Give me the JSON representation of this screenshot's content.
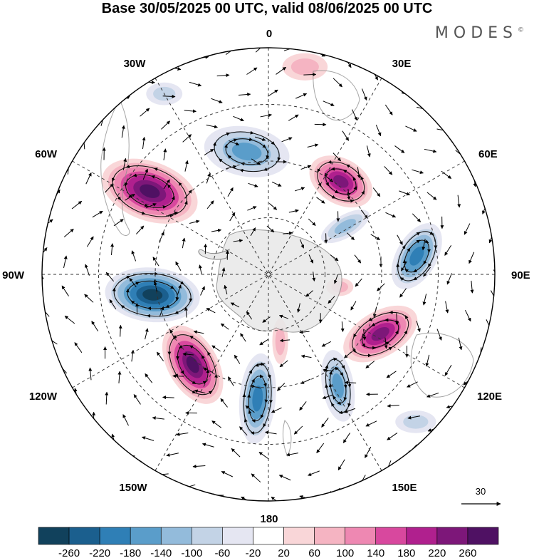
{
  "title": "Base 30/05/2025 00 UTC, valid 08/06/2025 00 UTC",
  "brand": {
    "text": "MODES",
    "mark": "©"
  },
  "longitude_labels": {
    "lon_0": "0",
    "lon_30e": "30E",
    "lon_60e": "60E",
    "lon_90e": "90E",
    "lon_120e": "120E",
    "lon_150e": "150E",
    "lon_180": "180",
    "lon_150w": "150W",
    "lon_120w": "120W",
    "lon_90w": "90W",
    "lon_60w": "60W",
    "lon_30w": "30W"
  },
  "reference_vector": {
    "label": "30",
    "icon": "arrow-right-icon"
  },
  "colorbar": {
    "tick_labels": [
      "-260",
      "-220",
      "-180",
      "-140",
      "-100",
      "-60",
      "-20",
      "20",
      "60",
      "100",
      "140",
      "180",
      "220",
      "260"
    ],
    "colors": [
      "#11415c",
      "#1b5f8e",
      "#2f7fb6",
      "#5a9dca",
      "#93bbdb",
      "#c3d3e6",
      "#e5e6f2",
      "#ffffff",
      "#f9d6d8",
      "#f5b4c2",
      "#ee88b2",
      "#d8489e",
      "#b0208e",
      "#7d1779",
      "#4f1163"
    ]
  },
  "anomalies": [
    {
      "lon": -55,
      "r": 0.64,
      "a": 0.22,
      "b": 0.13,
      "rot": 20,
      "value": 260
    },
    {
      "lon": -100,
      "r": 0.52,
      "a": 0.21,
      "b": 0.12,
      "rot": 5,
      "value": -260
    },
    {
      "lon": -140,
      "r": 0.52,
      "a": 0.19,
      "b": 0.11,
      "rot": 60,
      "value": 260
    },
    {
      "lon": -175,
      "r": 0.55,
      "a": 0.2,
      "b": 0.08,
      "rot": 95,
      "value": -180
    },
    {
      "lon": 148,
      "r": 0.58,
      "a": 0.16,
      "b": 0.07,
      "rot": 80,
      "value": -140
    },
    {
      "lon": 118,
      "r": 0.56,
      "a": 0.18,
      "b": 0.1,
      "rot": 150,
      "value": 240
    },
    {
      "lon": 83,
      "r": 0.66,
      "a": 0.16,
      "b": 0.09,
      "rot": 120,
      "value": -180
    },
    {
      "lon": 38,
      "r": 0.52,
      "a": 0.15,
      "b": 0.1,
      "rot": 30,
      "value": 220
    },
    {
      "lon": -10,
      "r": 0.55,
      "a": 0.19,
      "b": 0.11,
      "rot": 10,
      "value": -140
    },
    {
      "lon": 58,
      "r": 0.4,
      "a": 0.12,
      "b": 0.05,
      "rot": 150,
      "value": -100
    },
    {
      "lon": 100,
      "r": 0.32,
      "a": 0.06,
      "b": 0.04,
      "rot": 0,
      "value": 60
    },
    {
      "lon": 170,
      "r": 0.3,
      "a": 0.1,
      "b": 0.035,
      "rot": 90,
      "value": 60
    },
    {
      "lon": 10,
      "r": 0.93,
      "a": 0.1,
      "b": 0.06,
      "rot": 0,
      "value": 60
    },
    {
      "lon": -30,
      "r": 0.92,
      "a": 0.08,
      "b": 0.05,
      "rot": 0,
      "value": -60
    },
    {
      "lon": 135,
      "r": 0.92,
      "a": 0.09,
      "b": 0.05,
      "rot": 0,
      "value": -60
    }
  ],
  "wind_vectors": [
    {
      "lon": -55,
      "r": 0.64,
      "kind": "anticyclonic",
      "a": 0.2,
      "b": 0.12,
      "rot": 20
    },
    {
      "lon": -100,
      "r": 0.52,
      "kind": "cyclonic",
      "a": 0.2,
      "b": 0.11,
      "rot": 5
    },
    {
      "lon": -140,
      "r": 0.52,
      "kind": "anticyclonic",
      "a": 0.17,
      "b": 0.1,
      "rot": 60
    },
    {
      "lon": -175,
      "r": 0.55,
      "kind": "cyclonic",
      "a": 0.18,
      "b": 0.07,
      "rot": 95
    },
    {
      "lon": 148,
      "r": 0.58,
      "kind": "cyclonic",
      "a": 0.14,
      "b": 0.06,
      "rot": 80
    },
    {
      "lon": 118,
      "r": 0.56,
      "kind": "anticyclonic",
      "a": 0.16,
      "b": 0.09,
      "rot": 150
    },
    {
      "lon": 83,
      "r": 0.66,
      "kind": "cyclonic",
      "a": 0.14,
      "b": 0.08,
      "rot": 120
    },
    {
      "lon": 38,
      "r": 0.52,
      "kind": "anticyclonic",
      "a": 0.13,
      "b": 0.09,
      "rot": 30
    },
    {
      "lon": -10,
      "r": 0.55,
      "kind": "cyclonic",
      "a": 0.17,
      "b": 0.1,
      "rot": 10
    }
  ],
  "antarctica_color": "#e8e8e8",
  "coast_color": "#888888"
}
